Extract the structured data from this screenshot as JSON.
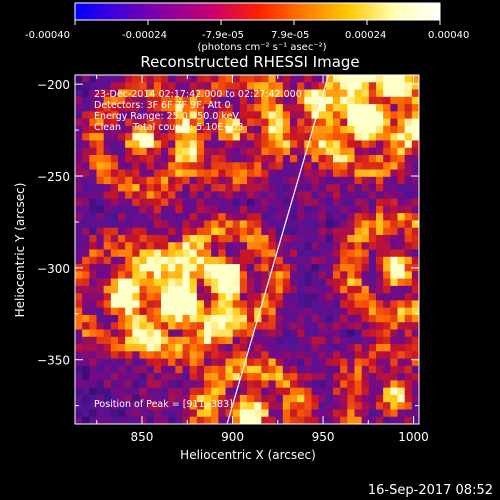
{
  "colorbar": {
    "ticks": [
      "-0.00040",
      "-0.00024",
      "-7.9e-05",
      "7.9e-05",
      "0.00024",
      "0.00040"
    ],
    "units_label": "(photons cm⁻² s⁻¹ asec⁻²)",
    "colors": [
      "#0000ff",
      "#4b00d2",
      "#8c00a0",
      "#c8006e",
      "#ff1e00",
      "#ff7800",
      "#ffc800",
      "#ffffb4",
      "#ffffff"
    ]
  },
  "chart_data": {
    "type": "heatmap",
    "title": "Reconstructed RHESSI Image",
    "xlabel": "Heliocentric X (arcsec)",
    "ylabel": "Heliocentric Y (arcsec)",
    "xlim": [
      813,
      1003
    ],
    "ylim": [
      -385,
      -195
    ],
    "x_ticks": [
      850,
      900,
      950,
      1000
    ],
    "y_ticks": [
      -350,
      -300,
      -250,
      -200
    ],
    "x_tick_labels": [
      "850",
      "900",
      "950",
      "1000"
    ],
    "y_tick_labels": [
      "−350",
      "−300",
      "−250",
      "−200"
    ],
    "annotations": [
      "23-Dec-2014 02:17:42.000 to 02:27:42.000",
      "Detectors: 3F 6F 7F 9F, Att 0",
      "Energy Range: 25.0 - 50.0 keV",
      "Clean    Total counts: 5.10E+03"
    ],
    "peak_label": "Position of Peak = [911,-383]",
    "peak_position": [
      911,
      -383
    ],
    "limb_line": [
      [
        897,
        -385
      ],
      [
        953,
        -195
      ]
    ],
    "bright_regions": [
      {
        "x": 850,
        "y": -230,
        "level": 0.8
      },
      {
        "x": 838,
        "y": -315,
        "level": 0.7
      },
      {
        "x": 870,
        "y": -320,
        "level": 0.85
      },
      {
        "x": 898,
        "y": -305,
        "level": 0.8
      },
      {
        "x": 910,
        "y": -380,
        "level": 1.0
      },
      {
        "x": 900,
        "y": -225,
        "level": 0.6
      },
      {
        "x": 990,
        "y": -300,
        "level": 0.95
      },
      {
        "x": 975,
        "y": -220,
        "level": 0.75
      },
      {
        "x": 990,
        "y": -200,
        "level": 0.8
      },
      {
        "x": 990,
        "y": -370,
        "level": 0.7
      },
      {
        "x": 945,
        "y": -210,
        "level": 0.55
      }
    ]
  },
  "footer": {
    "timestamp": "16-Sep-2017 08:52"
  }
}
